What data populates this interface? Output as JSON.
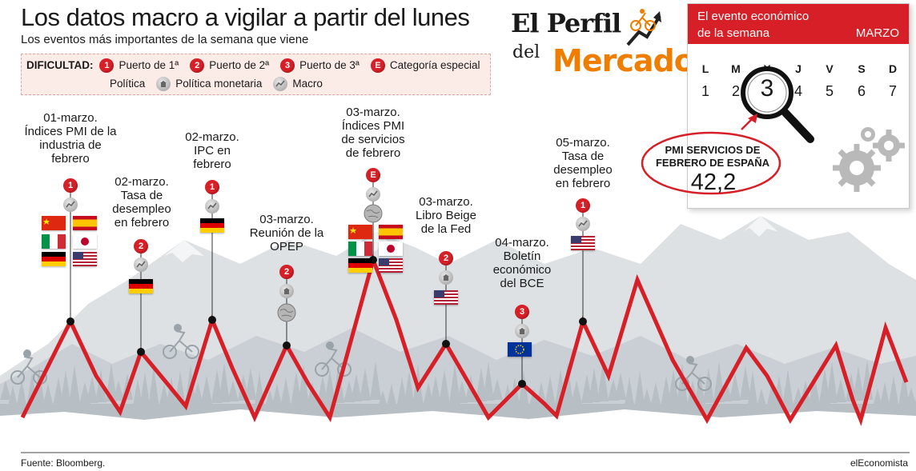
{
  "header": {
    "title": "Los datos macro a vigilar a partir del lunes",
    "subtitle": "Los eventos más importantes de la semana que viene"
  },
  "legend": {
    "label": "DIFICULTAD:",
    "items": [
      {
        "badge": "1",
        "text": "Puerto de 1ª"
      },
      {
        "badge": "2",
        "text": "Puerto de 2ª"
      },
      {
        "badge": "3",
        "text": "Puerto de 3ª"
      },
      {
        "badge": "E",
        "text": "Categoría especial"
      }
    ],
    "categories": [
      {
        "icon": "politics-icon",
        "text": "Política"
      },
      {
        "icon": "monetary-policy-icon",
        "text": "Política monetaria"
      },
      {
        "icon": "macro-icon",
        "text": "Macro"
      }
    ]
  },
  "brand": {
    "line1": "El Perfil",
    "line2": "del",
    "line3": "Mercado"
  },
  "calendar": {
    "label_line1": "El evento económico",
    "label_line2": "de la semana",
    "month": "MARZO",
    "day_letters": [
      "L",
      "M",
      "X",
      "J",
      "V",
      "S",
      "D"
    ],
    "day_numbers": [
      "1",
      "2",
      "3",
      "4",
      "5",
      "6",
      "7"
    ],
    "highlight": "3",
    "event_title": "PMI SERVICIOS DE FEBRERO DE ESPAÑA",
    "event_value": "42,2"
  },
  "colors": {
    "accent_red": "#d71f27",
    "brand_orange": "#ee7d00",
    "mountain_grey": "#cfd4d8"
  },
  "events": [
    {
      "id": "e1",
      "lines": [
        "01-marzo.",
        "Índices PMI de la",
        "industria de",
        "febrero"
      ],
      "badge": "1",
      "icon": "macro-icon",
      "flags": [
        "cn",
        "es",
        "it",
        "jp",
        "de",
        "us"
      ]
    },
    {
      "id": "e2",
      "lines": [
        "02-marzo.",
        "Tasa de",
        "desempleo",
        "en febrero"
      ],
      "badge": "2",
      "icon": "macro-icon",
      "flags": [
        "de"
      ]
    },
    {
      "id": "e3",
      "lines": [
        "02-marzo.",
        "IPC en",
        "febrero"
      ],
      "badge": "1",
      "icon": "macro-icon",
      "flags": [
        "de"
      ]
    },
    {
      "id": "e4",
      "lines": [
        "03-marzo.",
        "Reunión de la",
        "OPEP"
      ],
      "badge": "2",
      "icon": "monetary-policy-icon",
      "flags": [
        "globe"
      ]
    },
    {
      "id": "e5",
      "lines": [
        "03-marzo.",
        "Índices PMI",
        "de servicios",
        "de febrero"
      ],
      "badge": "E",
      "icon": "macro-icon",
      "flags": [
        "globe",
        "cn",
        "es",
        "it",
        "jp",
        "de",
        "us"
      ]
    },
    {
      "id": "e6",
      "lines": [
        "03-marzo.",
        "Libro Beige",
        "de la Fed"
      ],
      "badge": "2",
      "icon": "monetary-policy-icon",
      "flags": [
        "us"
      ]
    },
    {
      "id": "e7",
      "lines": [
        "04-marzo.",
        "Boletín",
        "económico",
        "del BCE"
      ],
      "badge": "3",
      "icon": "monetary-policy-icon",
      "flags": [
        "eu"
      ]
    },
    {
      "id": "e8",
      "lines": [
        "05-marzo.",
        "Tasa de",
        "desempleo",
        "en febrero"
      ],
      "badge": "1",
      "icon": "macro-icon",
      "flags": [
        "us"
      ]
    }
  ],
  "footer": {
    "source": "Fuente: Bloomberg.",
    "credit": "elEconomista"
  }
}
